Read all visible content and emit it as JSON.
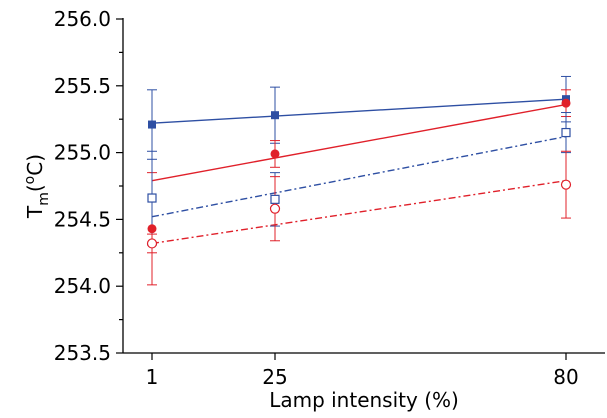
{
  "chart_data": {
    "type": "scatter",
    "xlabel": "Lamp intensity (%)",
    "ylabel": {
      "main": "T",
      "subscript": "m",
      "open_paren": "(",
      "superscript": "o",
      "unit": "C)"
    },
    "x_ticks": [
      "1",
      "25",
      "80"
    ],
    "x_tick_values": [
      1,
      25,
      80
    ],
    "y_ticks": [
      "253.5",
      "254.0",
      "254.5",
      "255.0",
      "255.5",
      "256.0"
    ],
    "y_tick_values": [
      253.5,
      254.0,
      254.5,
      255.0,
      255.5,
      256.0
    ],
    "ylim": [
      253.5,
      256.0
    ],
    "x_scale": "ordinal-mapped",
    "grid": false,
    "legend": "none",
    "series": [
      {
        "marker": "filled-square",
        "color": "#2e4fa3",
        "x": [
          1,
          25,
          80
        ],
        "y": [
          255.21,
          255.28,
          255.4
        ],
        "err": [
          0.26,
          0.21,
          0.17
        ],
        "fit": {
          "y_start": 255.22,
          "y_end": 255.4,
          "style": "solid"
        }
      },
      {
        "marker": "filled-circle",
        "color": "#e0202a",
        "x": [
          1,
          25,
          80
        ],
        "y": [
          254.43,
          254.99,
          255.37
        ],
        "err": [
          0.42,
          0.1,
          0.1
        ],
        "fit": {
          "y_start": 254.79,
          "y_end": 255.36,
          "style": "solid"
        }
      },
      {
        "marker": "open-square",
        "color": "#2e4fa3",
        "x": [
          1,
          25,
          80
        ],
        "y": [
          254.66,
          254.65,
          255.15
        ],
        "err": [
          0.35,
          0.2,
          0.15
        ],
        "fit": {
          "y_start": 254.52,
          "y_end": 255.12,
          "style": "dashdot"
        }
      },
      {
        "marker": "open-circle",
        "color": "#e0202a",
        "x": [
          1,
          25,
          80
        ],
        "y": [
          254.32,
          254.58,
          254.76
        ],
        "err": [
          0.07,
          0.24,
          0.25
        ],
        "fit": {
          "y_start": 254.32,
          "y_end": 254.79,
          "style": "dashdot"
        }
      }
    ]
  }
}
